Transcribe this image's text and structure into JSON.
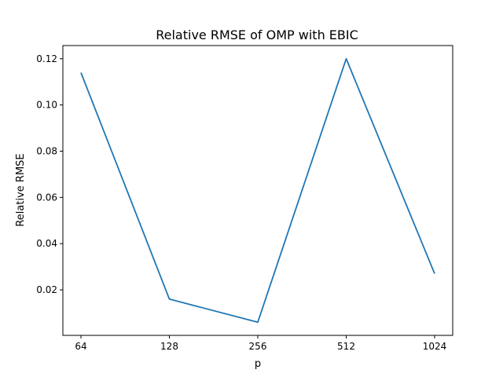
{
  "chart_data": {
    "type": "line",
    "title": "Relative RMSE of OMP with EBIC",
    "xlabel": "p",
    "ylabel": "Relative RMSE",
    "categories": [
      "64",
      "128",
      "256",
      "512",
      "1024"
    ],
    "series": [
      {
        "values": [
          0.114,
          0.016,
          0.006,
          0.12,
          0.027
        ]
      }
    ],
    "yticks": [
      "0.02",
      "0.04",
      "0.06",
      "0.08",
      "0.10",
      "0.12"
    ],
    "ylim": [
      0.0003,
      0.1257
    ],
    "grid": false,
    "colors": {
      "line": "#1f77b4",
      "axes": "#000000"
    }
  }
}
